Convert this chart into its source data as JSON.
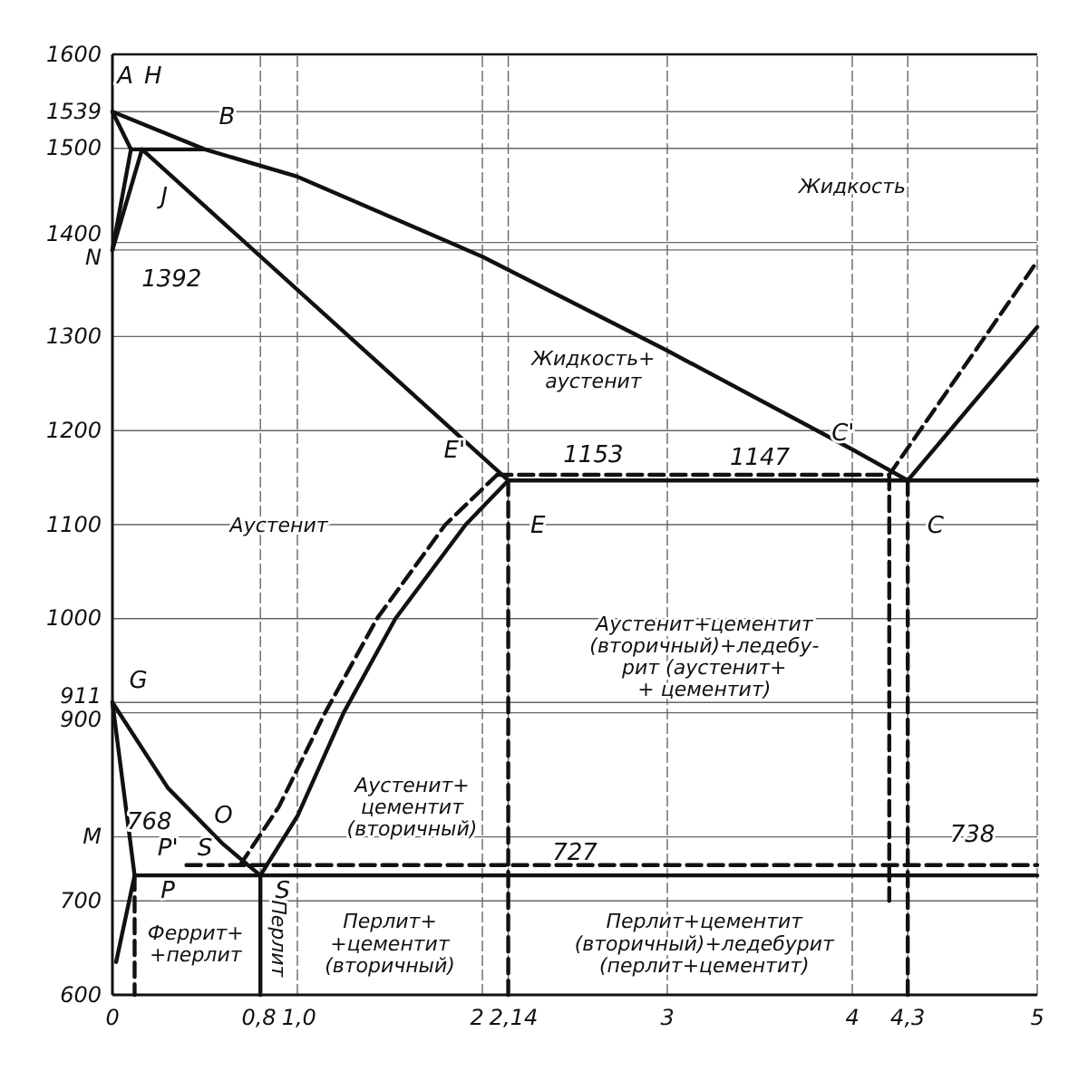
{
  "chart_data": {
    "type": "line",
    "xlim": [
      0,
      5
    ],
    "ylim": [
      600,
      1600
    ],
    "xticks": [
      0,
      {
        "value": 0.8,
        "label": "0,8"
      },
      {
        "value": 1,
        "label": "1,0"
      },
      2,
      {
        "value": 2.14,
        "label": "2,14"
      },
      3,
      4,
      {
        "value": 4.3,
        "label": "4,3"
      },
      5
    ],
    "yticks": [
      600,
      700,
      {
        "value": 768,
        "label": "M"
      },
      900,
      911,
      1000,
      1100,
      1200,
      1300,
      {
        "value": 1392,
        "label": "N"
      },
      1400,
      1500,
      1539,
      1600
    ],
    "grid": true,
    "series": [
      {
        "color": "#111111",
        "x": [
          0,
          0.5,
          1,
          2,
          3,
          4,
          4.3,
          5
        ],
        "values": [
          1539,
          1499,
          1470,
          1385,
          1285,
          1180,
          1147,
          1310
        ]
      },
      {
        "color": "#111111",
        "x": [
          0,
          0.1
        ],
        "values": [
          1539,
          1499
        ]
      },
      {
        "color": "#111111",
        "x": [
          0.1,
          0.5
        ],
        "values": [
          1499,
          1499
        ]
      },
      {
        "color": "#111111",
        "x": [
          0,
          0.1
        ],
        "values": [
          1392,
          1499
        ]
      },
      {
        "color": "#111111",
        "x": [
          0,
          0.16,
          2.14
        ],
        "values": [
          1392,
          1499,
          1147
        ]
      },
      {
        "color": "#111111",
        "x": [
          2.14,
          5
        ],
        "values": [
          1147,
          1147
        ]
      },
      {
        "color": "#111111",
        "line_style": "dashed",
        "x": [
          2.08,
          4.2
        ],
        "values": [
          1153,
          1153
        ]
      },
      {
        "color": "#111111",
        "line_style": "dashed",
        "x": [
          4.2,
          5
        ],
        "values": [
          1153,
          1380
        ]
      },
      {
        "color": "#111111",
        "x": [
          0.8,
          1,
          1.25,
          1.53,
          1.91,
          2.14
        ],
        "values": [
          727,
          790,
          900,
          1000,
          1100,
          1147
        ]
      },
      {
        "color": "#111111",
        "line_style": "dashed",
        "x": [
          0.69,
          0.9,
          1.15,
          1.43,
          1.8,
          2.08
        ],
        "values": [
          738,
          800,
          900,
          1000,
          1100,
          1153
        ]
      },
      {
        "color": "#111111",
        "x": [
          0,
          0.3,
          0.6,
          0.8
        ],
        "values": [
          911,
          820,
          760,
          727
        ]
      },
      {
        "color": "#111111",
        "x": [
          0,
          0.12,
          0.02
        ],
        "values": [
          911,
          727,
          635
        ]
      },
      {
        "color": "#111111",
        "x": [
          0.12,
          5
        ],
        "values": [
          727,
          727
        ]
      },
      {
        "color": "#111111",
        "line_style": "dashed",
        "x": [
          0.4,
          5
        ],
        "values": [
          738,
          738
        ]
      },
      {
        "color": "#111111",
        "x": [
          0.8,
          0.8
        ],
        "values": [
          727,
          600
        ]
      },
      {
        "color": "#111111",
        "line_style": "dashed",
        "x": [
          0.12,
          0.12
        ],
        "values": [
          727,
          600
        ]
      },
      {
        "color": "#111111",
        "line_style": "dashed",
        "x": [
          2.14,
          2.14
        ],
        "values": [
          1147,
          600
        ]
      },
      {
        "color": "#111111",
        "line_style": "dashed",
        "x": [
          4.2,
          4.2
        ],
        "values": [
          1153,
          700
        ]
      },
      {
        "color": "#111111",
        "line_style": "dashed",
        "x": [
          4.3,
          4.3
        ],
        "values": [
          1147,
          600
        ]
      }
    ],
    "annotations": [
      "Жидкость",
      "Жидкость+\nаустенит",
      "Аустенит",
      "Аустенит+цементит\n(вторичный)+ледебу-\nрит (аустенит+\n+ цементит)",
      "Аустенит+\nцементит\n(вторичный)",
      "Феррит+\n+перлит",
      "Перлит",
      "Перлит+\n+цементит\n(вторичный)",
      "Перлит+цементит\n(вторичный)+ледебурит\n(перлит+цементит)",
      "A",
      "H",
      "B",
      "J",
      "1392",
      "G",
      "E'",
      "E",
      "C'",
      "C",
      "O",
      "S",
      "S",
      "P'",
      "P",
      "768",
      "1153",
      "1147",
      "727",
      "738"
    ]
  }
}
